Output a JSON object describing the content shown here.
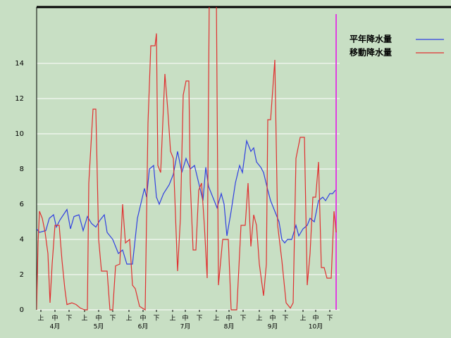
{
  "chart_data": {
    "type": "line",
    "xlim": [
      0,
      213
    ],
    "ylim": [
      0,
      17.2
    ],
    "yticks": [
      0,
      2,
      4,
      6,
      8,
      10,
      12,
      14
    ],
    "grid": true,
    "xticks": [
      {
        "value": 3,
        "label": "上"
      },
      {
        "value": 13,
        "label": "中"
      },
      {
        "value": 23,
        "label": "下"
      },
      {
        "value": 34,
        "label": "上"
      },
      {
        "value": 44,
        "label": "中"
      },
      {
        "value": 54,
        "label": "下"
      },
      {
        "value": 65.5,
        "label": "上"
      },
      {
        "value": 75.5,
        "label": "中"
      },
      {
        "value": 85,
        "label": "下"
      },
      {
        "value": 96.5,
        "label": "上"
      },
      {
        "value": 105.5,
        "label": "中"
      },
      {
        "value": 115.5,
        "label": "下"
      },
      {
        "value": 127.5,
        "label": "上"
      },
      {
        "value": 136.5,
        "label": "中"
      },
      {
        "value": 146.5,
        "label": "下"
      },
      {
        "value": 158,
        "label": "上"
      },
      {
        "value": 167.5,
        "label": "中"
      },
      {
        "value": 176.5,
        "label": "下"
      },
      {
        "value": 189,
        "label": "上"
      },
      {
        "value": 198,
        "label": "中"
      },
      {
        "value": 208,
        "label": "下"
      }
    ],
    "month_ticks": [
      {
        "value": 13,
        "label": "4月"
      },
      {
        "value": 44,
        "label": "5月"
      },
      {
        "value": 75.5,
        "label": "6月"
      },
      {
        "value": 105.5,
        "label": "7月"
      },
      {
        "value": 136.5,
        "label": "8月"
      },
      {
        "value": 167.5,
        "label": "9月"
      },
      {
        "value": 198,
        "label": "10月"
      }
    ],
    "series": [
      {
        "name": "平年降水量",
        "color": "#3040e0",
        "x": [
          0,
          2,
          6.5,
          9,
          12,
          14,
          16.5,
          19,
          21.5,
          24,
          26.5,
          30,
          33,
          36,
          39,
          42,
          45,
          48,
          50,
          54,
          58,
          61,
          64,
          68,
          71.5,
          76.5,
          78,
          80,
          83,
          85,
          87,
          90,
          94,
          97,
          100,
          103,
          106,
          109,
          112,
          115,
          118,
          120,
          122,
          125,
          128,
          131,
          133,
          135,
          138,
          141,
          144,
          146,
          149,
          152,
          154,
          156,
          159,
          161,
          164,
          166,
          169,
          172,
          174,
          176,
          178,
          181,
          184,
          186,
          189,
          192,
          194,
          197,
          200,
          203,
          205,
          208,
          210,
          212
        ],
        "values": [
          4.6,
          4.4,
          4.5,
          5.2,
          5.4,
          4.7,
          5.1,
          5.4,
          5.7,
          4.6,
          5.3,
          5.4,
          4.5,
          5.3,
          4.9,
          4.7,
          5.1,
          5.4,
          4.4,
          4.0,
          3.2,
          3.4,
          2.6,
          2.6,
          5.2,
          6.9,
          6.4,
          8.0,
          8.2,
          6.4,
          6.0,
          6.6,
          7.1,
          7.7,
          9.0,
          7.8,
          8.6,
          8.0,
          8.2,
          7.2,
          6.2,
          8.1,
          7.0,
          6.4,
          5.8,
          6.6,
          6.0,
          4.2,
          5.6,
          7.2,
          8.2,
          7.8,
          9.6,
          9.0,
          9.2,
          8.4,
          8.1,
          7.8,
          6.8,
          6.2,
          5.6,
          5.0,
          4.0,
          3.8,
          4.0,
          4.0,
          4.8,
          4.2,
          4.6,
          4.8,
          5.2,
          5.0,
          6.2,
          6.4,
          6.2,
          6.6,
          6.6,
          6.8
        ]
      },
      {
        "name": "移動降水量",
        "color": "#e03030",
        "x": [
          0,
          1,
          2,
          4,
          6,
          8,
          9.5,
          11,
          13,
          16,
          18,
          20,
          21.5,
          25,
          28,
          31,
          34,
          36,
          37,
          40,
          42,
          44,
          46,
          50,
          52,
          54,
          56,
          59,
          61,
          63,
          66,
          68,
          70,
          73,
          77,
          79,
          81,
          84,
          85,
          86,
          88,
          91,
          93,
          95,
          97,
          100,
          102,
          104,
          106,
          108,
          109,
          111,
          113,
          115,
          117,
          119,
          121,
          122.5,
          127.5,
          129,
          132,
          136,
          138,
          142,
          145,
          148,
          150,
          152,
          154,
          156,
          158,
          161,
          163,
          164,
          166,
          169,
          171,
          174,
          177,
          180,
          182,
          184,
          187,
          190,
          192,
          194,
          196,
          198,
          200,
          202,
          204,
          206,
          209,
          211,
          212.5
        ],
        "values": [
          0,
          3.8,
          5.6,
          5.2,
          4.4,
          3.2,
          0.4,
          2.6,
          4.8,
          4.8,
          2.8,
          1.2,
          0.3,
          0.4,
          0.3,
          0.1,
          0,
          0,
          7.2,
          11.4,
          11.4,
          4.0,
          2.2,
          2.2,
          0,
          0,
          2.5,
          2.6,
          6.0,
          3.8,
          4.0,
          1.4,
          1.2,
          0.2,
          0,
          10.6,
          15.0,
          15.0,
          15.7,
          8.2,
          7.8,
          13.4,
          11.4,
          9.0,
          8.6,
          2.2,
          5.2,
          12.2,
          13.0,
          13.0,
          7.2,
          3.4,
          3.4,
          6.8,
          7.2,
          4.8,
          1.8,
          18,
          18,
          1.4,
          4.0,
          4.0,
          0,
          0,
          4.8,
          4.8,
          7.2,
          3.6,
          5.4,
          4.8,
          2.6,
          0.8,
          2.6,
          10.8,
          10.8,
          14.2,
          4.8,
          2.8,
          0.4,
          0.1,
          0.4,
          8.6,
          9.8,
          9.8,
          1.4,
          3.2,
          6.4,
          6.4,
          8.4,
          2.4,
          2.4,
          1.8,
          1.8,
          5.6,
          4.4
        ]
      }
    ]
  }
}
